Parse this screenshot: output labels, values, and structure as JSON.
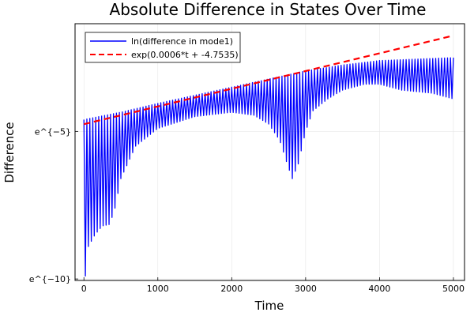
{
  "chart_data": {
    "type": "line",
    "title": "Absolute Difference in States Over Time",
    "xlabel": "Time",
    "ylabel": "Difference",
    "xlim": [
      -120,
      5150
    ],
    "ylim": [
      -10.05,
      -1.35
    ],
    "x_ticks": [
      {
        "value": 0,
        "label": "0"
      },
      {
        "value": 1000,
        "label": "1000"
      },
      {
        "value": 2000,
        "label": "2000"
      },
      {
        "value": 3000,
        "label": "3000"
      },
      {
        "value": 4000,
        "label": "4000"
      },
      {
        "value": 5000,
        "label": "5000"
      }
    ],
    "y_ticks": [
      {
        "value": -5,
        "label": "e^{−5}"
      },
      {
        "value": -10,
        "label": "e^{−10}"
      }
    ],
    "grid": true,
    "legend_position": "top-left",
    "series": [
      {
        "name": "ln(difference in mode1)",
        "color": "#0000ff",
        "style": "solid",
        "oscillation_period": 40,
        "upper_envelope": [
          [
            0,
            -4.6
          ],
          [
            500,
            -4.35
          ],
          [
            1000,
            -4.05
          ],
          [
            2000,
            -3.5
          ],
          [
            3000,
            -2.95
          ],
          [
            3500,
            -2.75
          ],
          [
            4000,
            -2.6
          ],
          [
            5000,
            -2.5
          ]
        ],
        "lower_envelope": [
          [
            0,
            -9.9
          ],
          [
            20,
            -9.9
          ],
          [
            60,
            -8.9
          ],
          [
            150,
            -8.5
          ],
          [
            250,
            -8.2
          ],
          [
            350,
            -8.15
          ],
          [
            420,
            -7.6
          ],
          [
            500,
            -6.6
          ],
          [
            700,
            -5.5
          ],
          [
            1000,
            -4.9
          ],
          [
            1500,
            -4.5
          ],
          [
            2000,
            -4.35
          ],
          [
            2300,
            -4.45
          ],
          [
            2500,
            -4.75
          ],
          [
            2650,
            -5.3
          ],
          [
            2750,
            -6.1
          ],
          [
            2820,
            -6.6
          ],
          [
            2900,
            -6.1
          ],
          [
            3000,
            -5.0
          ],
          [
            3100,
            -4.3
          ],
          [
            3300,
            -3.9
          ],
          [
            3500,
            -3.6
          ],
          [
            3800,
            -3.4
          ],
          [
            4000,
            -3.4
          ],
          [
            4300,
            -3.6
          ],
          [
            4700,
            -3.7
          ],
          [
            5000,
            -3.9
          ]
        ]
      },
      {
        "name": "exp(0.0006*t + -4.7535)",
        "color": "#ff0000",
        "style": "dashed",
        "x": [
          0,
          5000
        ],
        "y": [
          -4.7535,
          -1.7535
        ]
      }
    ]
  }
}
